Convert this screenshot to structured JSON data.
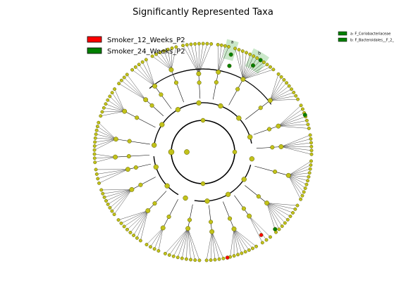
{
  "title": "Significantly Represented Taxa",
  "legend": [
    {
      "label": "Smoker_12_Weeks_P2",
      "color": "#ff0000"
    },
    {
      "label": "Smoker_24_Weeks_P2",
      "color": "#008000"
    }
  ],
  "clade_legend": [
    {
      "label": "a: F_Coriobacteriaceae",
      "color": "#008000"
    },
    {
      "label": "b: F_Bacteroidales__F_2_",
      "color": "#008000"
    }
  ],
  "clade_markers": [
    "a",
    "b"
  ],
  "colors": {
    "node_fill": "#c2c21a",
    "node_stroke": "#5a5a00",
    "branch": "#000000",
    "highlight_green": "#008000",
    "highlight_red": "#ff0000",
    "clade_shade": "#a6d8a6"
  }
}
